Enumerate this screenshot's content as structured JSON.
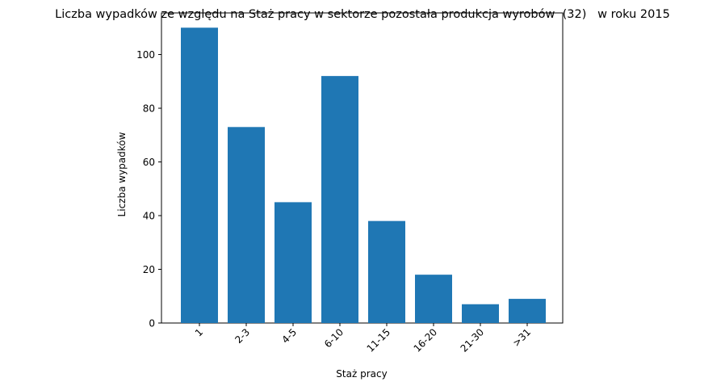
{
  "chart_data": {
    "type": "bar",
    "title": "Liczba wypadków ze względu na Staż pracy w sektorze pozostała produkcja wyrobów  (32)   w roku 2015",
    "xlabel": "Staż pracy",
    "ylabel": "Liczba wypadków",
    "categories": [
      "1",
      "2-3",
      "4-5",
      "6-10",
      "11-15",
      "16-20",
      "21-30",
      ">31"
    ],
    "values": [
      110,
      73,
      45,
      92,
      38,
      18,
      7,
      9
    ],
    "ylim": [
      0,
      115.5
    ],
    "yticks": [
      0,
      20,
      40,
      60,
      80,
      100
    ],
    "bar_color": "#1f77b4",
    "grid": false,
    "legend": "none"
  }
}
